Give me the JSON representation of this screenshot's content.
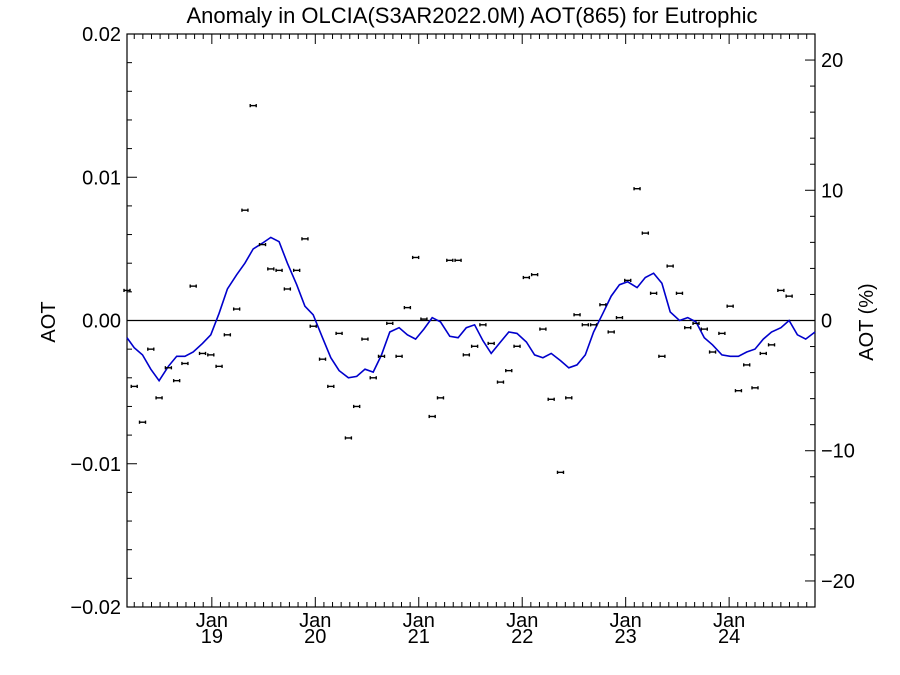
{
  "chart_data": {
    "type": "scatter",
    "title": "Anomaly in OLCIA(S3AR2022.0M) AOT(865) for Eutrophic",
    "ylabel": "AOT",
    "y2label": "AOT (%)",
    "ylim": [
      -0.02,
      0.02
    ],
    "y2lim": [
      -22,
      22
    ],
    "xlim": [
      2018.18,
      2024.83
    ],
    "yticks": [
      {
        "value": 0.02,
        "label": "0.02"
      },
      {
        "value": 0.01,
        "label": "0.01"
      },
      {
        "value": 0.0,
        "label": "0.00"
      },
      {
        "value": -0.01,
        "label": "−0.01"
      },
      {
        "value": -0.02,
        "label": "−0.02"
      }
    ],
    "y2ticks": [
      {
        "value": 20,
        "label": "20"
      },
      {
        "value": 10,
        "label": "10"
      },
      {
        "value": 0,
        "label": "0"
      },
      {
        "value": -10,
        "label": "−10"
      },
      {
        "value": -20,
        "label": "−20"
      }
    ],
    "xticks": [
      {
        "value": 2019.0,
        "month": "Jan",
        "year": "19"
      },
      {
        "value": 2020.0,
        "month": "Jan",
        "year": "20"
      },
      {
        "value": 2021.0,
        "month": "Jan",
        "year": "21"
      },
      {
        "value": 2022.0,
        "month": "Jan",
        "year": "22"
      },
      {
        "value": 2023.0,
        "month": "Jan",
        "year": "23"
      },
      {
        "value": 2024.0,
        "month": "Jan",
        "year": "24"
      }
    ],
    "zero_line": true,
    "points": [
      {
        "x": 2018.18,
        "y": 0.0021
      },
      {
        "x": 2018.25,
        "y": -0.0046
      },
      {
        "x": 2018.33,
        "y": -0.0071
      },
      {
        "x": 2018.41,
        "y": -0.002
      },
      {
        "x": 2018.49,
        "y": -0.0054
      },
      {
        "x": 2018.58,
        "y": -0.0033
      },
      {
        "x": 2018.66,
        "y": -0.0042
      },
      {
        "x": 2018.74,
        "y": -0.003
      },
      {
        "x": 2018.82,
        "y": 0.0024
      },
      {
        "x": 2018.91,
        "y": -0.0023
      },
      {
        "x": 2018.99,
        "y": -0.0024
      },
      {
        "x": 2019.07,
        "y": -0.0032
      },
      {
        "x": 2019.15,
        "y": -0.001
      },
      {
        "x": 2019.24,
        "y": 0.0008
      },
      {
        "x": 2019.32,
        "y": 0.0077
      },
      {
        "x": 2019.4,
        "y": 0.015
      },
      {
        "x": 2019.49,
        "y": 0.0053
      },
      {
        "x": 2019.57,
        "y": 0.0036
      },
      {
        "x": 2019.65,
        "y": 0.0035
      },
      {
        "x": 2019.73,
        "y": 0.0022
      },
      {
        "x": 2019.82,
        "y": 0.0035
      },
      {
        "x": 2019.9,
        "y": 0.0057
      },
      {
        "x": 2019.98,
        "y": -0.0004
      },
      {
        "x": 2020.07,
        "y": -0.0027
      },
      {
        "x": 2020.15,
        "y": -0.0046
      },
      {
        "x": 2020.23,
        "y": -0.0009
      },
      {
        "x": 2020.32,
        "y": -0.0082
      },
      {
        "x": 2020.4,
        "y": -0.006
      },
      {
        "x": 2020.48,
        "y": -0.0013
      },
      {
        "x": 2020.56,
        "y": -0.004
      },
      {
        "x": 2020.64,
        "y": -0.0025
      },
      {
        "x": 2020.72,
        "y": -0.0002
      },
      {
        "x": 2020.81,
        "y": -0.0025
      },
      {
        "x": 2020.89,
        "y": 0.0009
      },
      {
        "x": 2020.97,
        "y": 0.0044
      },
      {
        "x": 2021.05,
        "y": 0.0001
      },
      {
        "x": 2021.13,
        "y": -0.0067
      },
      {
        "x": 2021.21,
        "y": -0.0054
      },
      {
        "x": 2021.3,
        "y": 0.0042
      },
      {
        "x": 2021.38,
        "y": 0.0042
      },
      {
        "x": 2021.46,
        "y": -0.0024
      },
      {
        "x": 2021.54,
        "y": -0.0018
      },
      {
        "x": 2021.62,
        "y": -0.0003
      },
      {
        "x": 2021.7,
        "y": -0.0016
      },
      {
        "x": 2021.79,
        "y": -0.0043
      },
      {
        "x": 2021.87,
        "y": -0.0035
      },
      {
        "x": 2021.95,
        "y": -0.0018
      },
      {
        "x": 2022.04,
        "y": 0.003
      },
      {
        "x": 2022.12,
        "y": 0.0032
      },
      {
        "x": 2022.2,
        "y": -0.0006
      },
      {
        "x": 2022.28,
        "y": -0.0055
      },
      {
        "x": 2022.37,
        "y": -0.0106
      },
      {
        "x": 2022.45,
        "y": -0.0054
      },
      {
        "x": 2022.53,
        "y": 0.0004
      },
      {
        "x": 2022.61,
        "y": -0.0003
      },
      {
        "x": 2022.69,
        "y": -0.0003
      },
      {
        "x": 2022.78,
        "y": 0.0011
      },
      {
        "x": 2022.86,
        "y": -0.0008
      },
      {
        "x": 2022.94,
        "y": 0.0002
      },
      {
        "x": 2023.02,
        "y": 0.0028
      },
      {
        "x": 2023.11,
        "y": 0.0092
      },
      {
        "x": 2023.19,
        "y": 0.0061
      },
      {
        "x": 2023.27,
        "y": 0.0019
      },
      {
        "x": 2023.35,
        "y": -0.0025
      },
      {
        "x": 2023.43,
        "y": 0.0038
      },
      {
        "x": 2023.52,
        "y": 0.0019
      },
      {
        "x": 2023.6,
        "y": -0.0005
      },
      {
        "x": 2023.68,
        "y": -0.0002
      },
      {
        "x": 2023.76,
        "y": -0.0006
      },
      {
        "x": 2023.84,
        "y": -0.0022
      },
      {
        "x": 2023.93,
        "y": -0.0009
      },
      {
        "x": 2024.01,
        "y": 0.001
      },
      {
        "x": 2024.09,
        "y": -0.0049
      },
      {
        "x": 2024.17,
        "y": -0.0031
      },
      {
        "x": 2024.25,
        "y": -0.0047
      },
      {
        "x": 2024.33,
        "y": -0.0023
      },
      {
        "x": 2024.41,
        "y": -0.0017
      },
      {
        "x": 2024.5,
        "y": 0.0021
      },
      {
        "x": 2024.58,
        "y": 0.0017
      }
    ],
    "smoothed": {
      "color": "#0000cc",
      "x": [
        2018.18,
        2018.25,
        2018.33,
        2018.41,
        2018.49,
        2018.58,
        2018.66,
        2018.74,
        2018.82,
        2018.91,
        2018.99,
        2019.07,
        2019.15,
        2019.24,
        2019.32,
        2019.4,
        2019.49,
        2019.57,
        2019.65,
        2019.73,
        2019.82,
        2019.9,
        2019.98,
        2020.07,
        2020.15,
        2020.23,
        2020.32,
        2020.4,
        2020.48,
        2020.56,
        2020.64,
        2020.72,
        2020.81,
        2020.89,
        2020.97,
        2021.05,
        2021.13,
        2021.21,
        2021.3,
        2021.38,
        2021.46,
        2021.54,
        2021.62,
        2021.7,
        2021.79,
        2021.87,
        2021.95,
        2022.04,
        2022.12,
        2022.2,
        2022.28,
        2022.37,
        2022.45,
        2022.53,
        2022.61,
        2022.69,
        2022.78,
        2022.86,
        2022.94,
        2023.02,
        2023.11,
        2023.19,
        2023.27,
        2023.35,
        2023.43,
        2023.52,
        2023.6,
        2023.68,
        2023.76,
        2023.84,
        2023.93,
        2024.01,
        2024.09,
        2024.17,
        2024.25,
        2024.33,
        2024.41,
        2024.5,
        2024.58,
        2024.66,
        2024.74,
        2024.83
      ],
      "y": [
        -0.0012,
        -0.0019,
        -0.0024,
        -0.0034,
        -0.0042,
        -0.0032,
        -0.0025,
        -0.0025,
        -0.0022,
        -0.0016,
        -0.001,
        0.0005,
        0.0022,
        0.0032,
        0.004,
        0.005,
        0.0054,
        0.0058,
        0.0055,
        0.004,
        0.0025,
        0.001,
        0.0004,
        -0.0012,
        -0.0026,
        -0.0035,
        -0.004,
        -0.0039,
        -0.0034,
        -0.0036,
        -0.0024,
        -0.0008,
        -0.0005,
        -0.001,
        -0.0013,
        -0.0006,
        0.0002,
        -0.0001,
        -0.0011,
        -0.0012,
        -0.0005,
        -0.0003,
        -0.0014,
        -0.0023,
        -0.0015,
        -0.0008,
        -0.0009,
        -0.0015,
        -0.0024,
        -0.0026,
        -0.0023,
        -0.0028,
        -0.0033,
        -0.0031,
        -0.0024,
        -0.0008,
        0.0005,
        0.0017,
        0.0025,
        0.0027,
        0.0023,
        0.003,
        0.0033,
        0.0026,
        0.0006,
        0.0,
        0.0002,
        -0.0001,
        -0.0012,
        -0.0017,
        -0.0024,
        -0.0025,
        -0.0025,
        -0.0022,
        -0.002,
        -0.0013,
        -0.0008,
        -0.0005,
        0.0,
        -0.001,
        -0.0013,
        -0.0008
      ]
    }
  }
}
